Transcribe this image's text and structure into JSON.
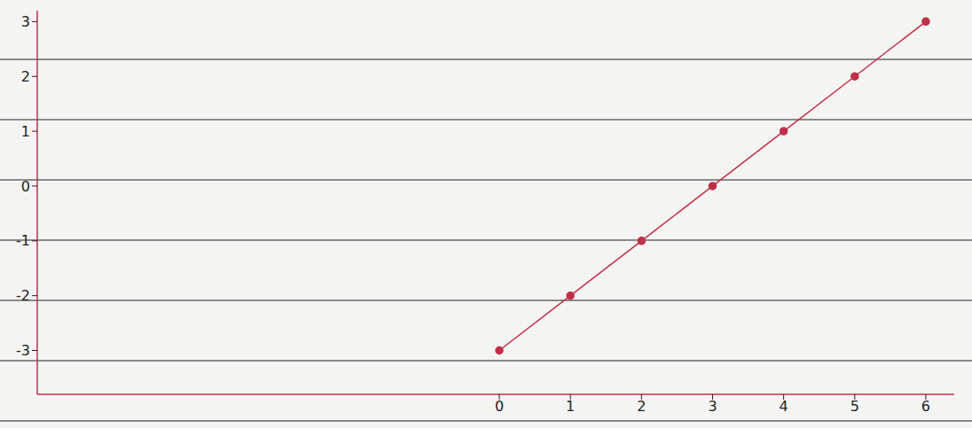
{
  "chart_data": {
    "type": "line",
    "x": [
      0,
      1,
      2,
      3,
      4,
      5,
      6
    ],
    "values": [
      -3,
      -2,
      -1,
      0,
      1,
      2,
      3
    ],
    "color": "#c0304a",
    "marker": "circle",
    "line_style": "solid",
    "xlim": [
      -6.5,
      6.4
    ],
    "xticks": [
      0,
      1,
      2,
      3,
      4,
      5,
      6
    ],
    "ylim": [
      -3.8,
      3.2
    ],
    "yticks": [
      -3,
      -2,
      -1,
      0,
      1,
      2,
      3
    ],
    "grid": false
  }
}
